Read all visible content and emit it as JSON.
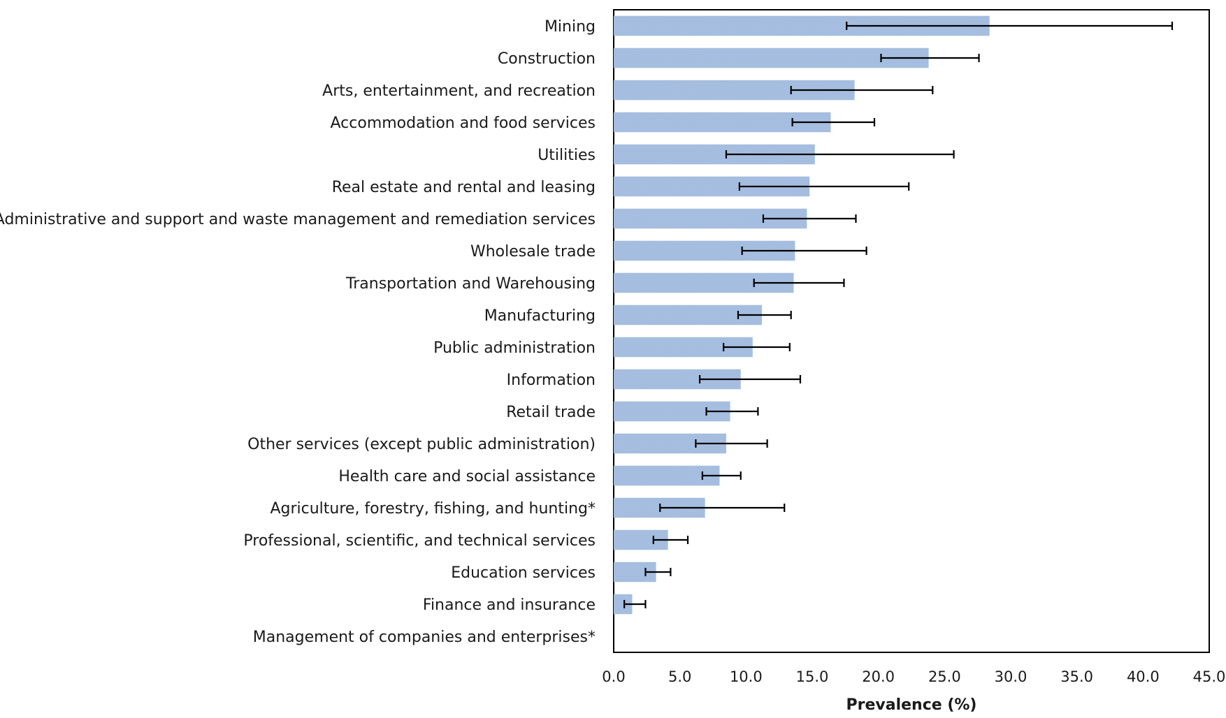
{
  "chart_data": {
    "type": "bar",
    "orientation": "horizontal",
    "categories": [
      "Mining",
      "Construction",
      "Arts, entertainment, and recreation",
      "Accommodation and food services",
      "Utilities",
      "Real estate and rental and leasing",
      "Administrative and support and waste management and remediation services",
      "Wholesale trade",
      "Transportation and Warehousing",
      "Manufacturing",
      "Public administration",
      "Information",
      "Retail trade",
      "Other services (except public administration)",
      "Health care and social assistance",
      "Agriculture, forestry, fishing, and hunting*",
      "Professional, scientific, and technical services",
      "Education services",
      "Finance and insurance",
      "Management of companies and enterprises*"
    ],
    "values": [
      28.4,
      23.8,
      18.2,
      16.4,
      15.2,
      14.8,
      14.6,
      13.7,
      13.6,
      11.2,
      10.5,
      9.6,
      8.8,
      8.5,
      8.0,
      6.9,
      4.1,
      3.2,
      1.4,
      0.0
    ],
    "error_low": [
      17.6,
      20.2,
      13.4,
      13.5,
      8.5,
      9.5,
      11.3,
      9.7,
      10.6,
      9.4,
      8.3,
      6.5,
      7.0,
      6.2,
      6.7,
      3.5,
      3.0,
      2.4,
      0.8,
      null
    ],
    "error_high": [
      42.2,
      27.6,
      24.1,
      19.7,
      25.7,
      22.3,
      18.3,
      19.1,
      17.4,
      13.4,
      13.3,
      14.1,
      10.9,
      11.6,
      9.6,
      12.9,
      5.6,
      4.3,
      2.4,
      null
    ],
    "xlabel": "Prevalence (%)",
    "ylabel": "",
    "xlim": [
      0,
      45
    ],
    "xticks": [
      "0.0",
      "5.0",
      "10.0",
      "15.0",
      "20.0",
      "25.0",
      "30.0",
      "35.0",
      "40.0",
      "45.0"
    ],
    "grid": false,
    "legend": "none",
    "bar_color": "#a8c0e0",
    "error_bar_color": "#000000"
  }
}
